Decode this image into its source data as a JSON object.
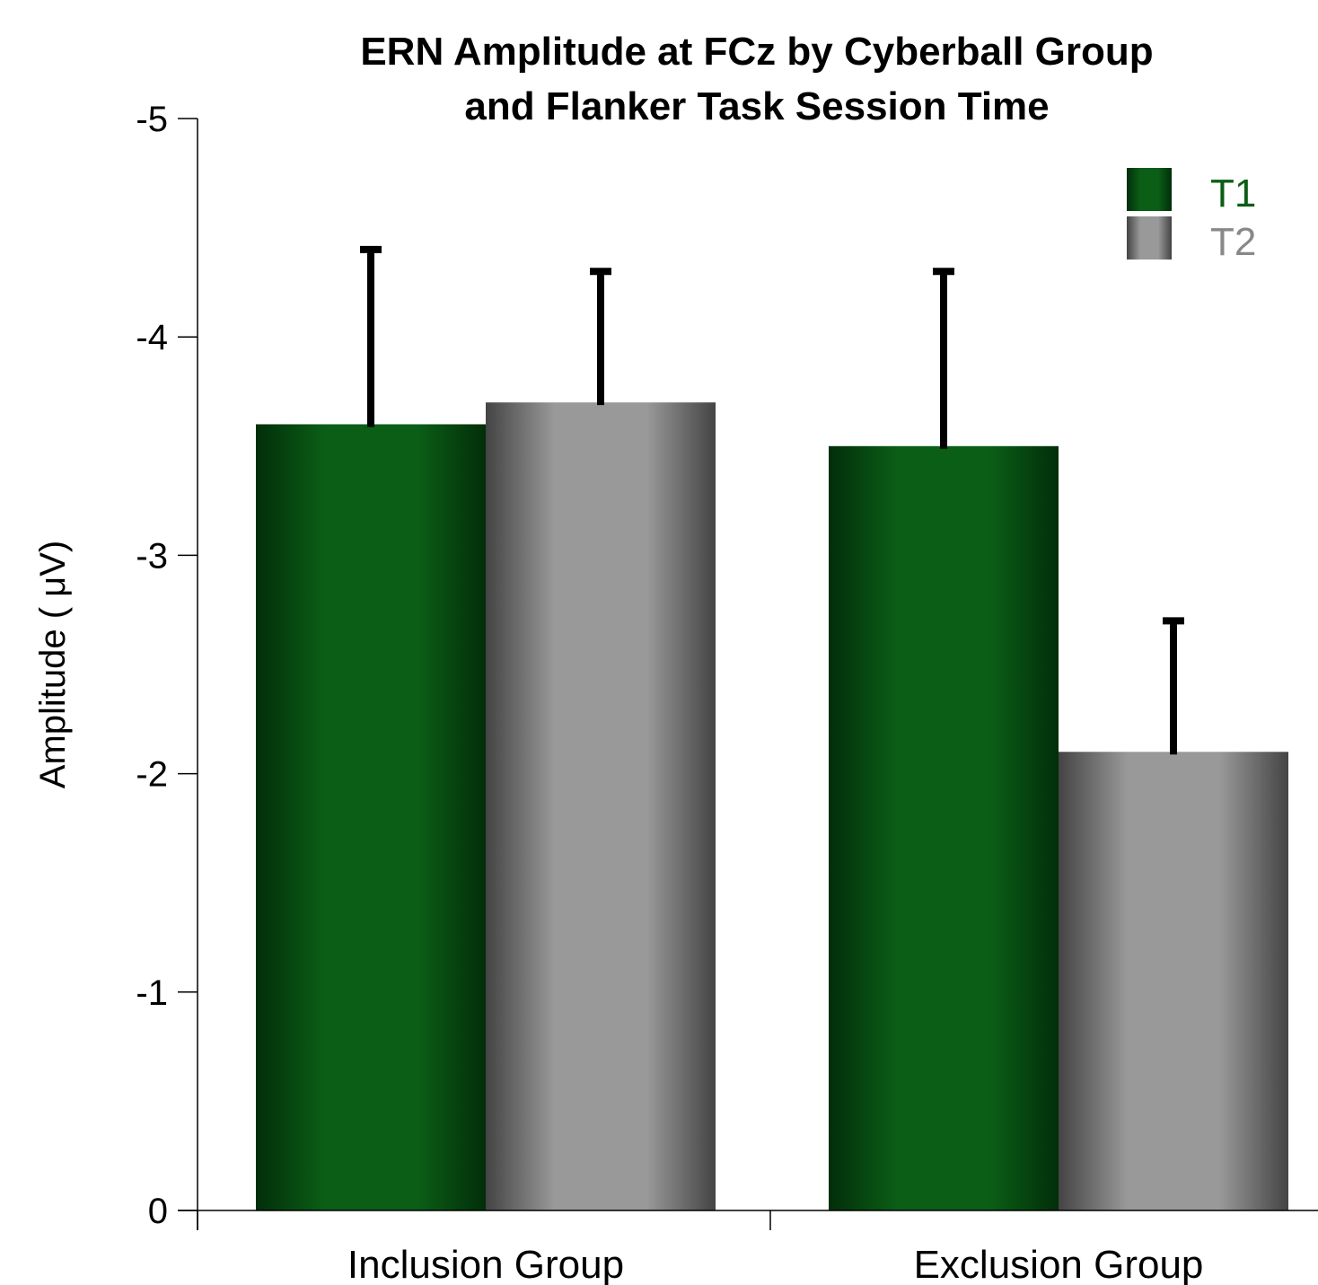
{
  "chart_data": {
    "type": "bar",
    "title_lines": [
      "ERN Amplitude at FCz by Cyberball Group",
      "and Flanker Task Session Time"
    ],
    "ylabel": "Amplitude ( μV)",
    "xlabel": "",
    "categories": [
      "Inclusion Group",
      "Exclusion Group"
    ],
    "y_axis_inverted": true,
    "ylim": [
      0,
      -5
    ],
    "yticks": [
      0,
      -1,
      -2,
      -3,
      -4,
      -5
    ],
    "ytick_labels": [
      "0",
      "-1",
      "-2",
      "-3",
      "-4",
      "-5"
    ],
    "legend_position": "top-right",
    "series": [
      {
        "name": "T1",
        "values": [
          -3.6,
          -3.5
        ],
        "error_upper": [
          -4.4,
          -4.3
        ],
        "color": "#0b5e16",
        "label_color": "#0b5e16"
      },
      {
        "name": "T2",
        "values": [
          -3.7,
          -2.1
        ],
        "error_upper": [
          -4.3,
          -2.7
        ],
        "color": "#999999",
        "label_color": "#888888"
      }
    ]
  }
}
